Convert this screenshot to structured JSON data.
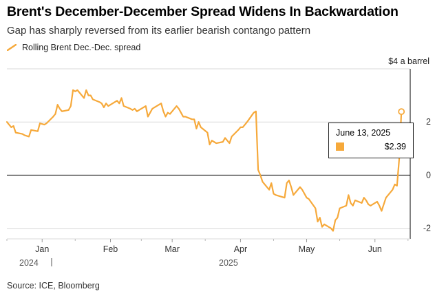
{
  "title": "Brent's December-December Spread Widens In Backwardation",
  "subtitle": "Gap has sharply reversed from its earlier bearish contango pattern",
  "source": "Source: ICE, Bloomberg",
  "colors": {
    "line": "#f6a93b",
    "axis": "#000000",
    "grid": "#d9d9d9"
  },
  "tooltip": {
    "date": "June 13, 2025",
    "value": "$2.39"
  },
  "chart_data": {
    "type": "line",
    "title": "Brent's December-December Spread Widens In Backwardation",
    "subtitle": "Gap has sharply reversed from its earlier bearish contango pattern",
    "unit_label": "$4 a barrel",
    "xlabel": "",
    "ylabel": "",
    "ylim": [
      -2.4,
      4
    ],
    "yticks": [
      2,
      0,
      -2
    ],
    "ytick_labels": [
      "2",
      "0",
      "-2"
    ],
    "xlim": [
      "2024-12-16",
      "2025-06-17"
    ],
    "xticks": [
      {
        "date": "2025-01-01",
        "label": "Jan"
      },
      {
        "date": "2025-02-01",
        "label": "Feb"
      },
      {
        "date": "2025-03-01",
        "label": "Mar"
      },
      {
        "date": "2025-04-01",
        "label": "Apr"
      },
      {
        "date": "2025-05-01",
        "label": "May"
      },
      {
        "date": "2025-06-01",
        "label": "Jun"
      }
    ],
    "year_labels": [
      {
        "date": "2024-12-16",
        "label": "2024"
      },
      {
        "date": "2025-01-01",
        "label": "2025"
      }
    ],
    "grid": true,
    "legend": "top-left",
    "series": [
      {
        "name": "Rolling Brent Dec.-Dec. spread",
        "points": [
          [
            "2024-12-16",
            2.0
          ],
          [
            "2024-12-17",
            1.9
          ],
          [
            "2024-12-18",
            1.8
          ],
          [
            "2024-12-19",
            1.85
          ],
          [
            "2024-12-20",
            1.6
          ],
          [
            "2024-12-23",
            1.55
          ],
          [
            "2024-12-24",
            1.5
          ],
          [
            "2024-12-26",
            1.45
          ],
          [
            "2024-12-27",
            1.7
          ],
          [
            "2024-12-30",
            1.65
          ],
          [
            "2024-12-31",
            1.95
          ],
          [
            "2025-01-02",
            1.9
          ],
          [
            "2025-01-03",
            1.95
          ],
          [
            "2025-01-06",
            2.2
          ],
          [
            "2025-01-07",
            2.3
          ],
          [
            "2025-01-08",
            2.65
          ],
          [
            "2025-01-09",
            2.5
          ],
          [
            "2025-01-10",
            2.4
          ],
          [
            "2025-01-13",
            2.45
          ],
          [
            "2025-01-14",
            2.6
          ],
          [
            "2025-01-15",
            3.2
          ],
          [
            "2025-01-16",
            3.15
          ],
          [
            "2025-01-17",
            3.2
          ],
          [
            "2025-01-20",
            2.9
          ],
          [
            "2025-01-21",
            3.2
          ],
          [
            "2025-01-22",
            3.0
          ],
          [
            "2025-01-23",
            3.0
          ],
          [
            "2025-01-24",
            2.85
          ],
          [
            "2025-01-27",
            2.75
          ],
          [
            "2025-01-28",
            2.7
          ],
          [
            "2025-01-29",
            2.55
          ],
          [
            "2025-01-30",
            2.7
          ],
          [
            "2025-01-31",
            2.6
          ],
          [
            "2025-02-03",
            2.75
          ],
          [
            "2025-02-04",
            2.8
          ],
          [
            "2025-02-05",
            2.7
          ],
          [
            "2025-02-06",
            2.9
          ],
          [
            "2025-02-07",
            2.6
          ],
          [
            "2025-02-10",
            2.5
          ],
          [
            "2025-02-11",
            2.45
          ],
          [
            "2025-02-12",
            2.5
          ],
          [
            "2025-02-13",
            2.4
          ],
          [
            "2025-02-14",
            2.45
          ],
          [
            "2025-02-17",
            2.6
          ],
          [
            "2025-02-18",
            2.2
          ],
          [
            "2025-02-19",
            2.35
          ],
          [
            "2025-02-20",
            2.5
          ],
          [
            "2025-02-21",
            2.55
          ],
          [
            "2025-02-24",
            2.7
          ],
          [
            "2025-02-25",
            2.4
          ],
          [
            "2025-02-26",
            2.2
          ],
          [
            "2025-02-27",
            2.35
          ],
          [
            "2025-02-28",
            2.3
          ],
          [
            "2025-03-03",
            2.6
          ],
          [
            "2025-03-04",
            2.5
          ],
          [
            "2025-03-05",
            2.35
          ],
          [
            "2025-03-06",
            2.2
          ],
          [
            "2025-03-07",
            2.2
          ],
          [
            "2025-03-10",
            2.1
          ],
          [
            "2025-03-11",
            2.1
          ],
          [
            "2025-03-12",
            1.75
          ],
          [
            "2025-03-13",
            2.0
          ],
          [
            "2025-03-14",
            1.8
          ],
          [
            "2025-03-17",
            1.6
          ],
          [
            "2025-03-18",
            1.15
          ],
          [
            "2025-03-19",
            1.3
          ],
          [
            "2025-03-20",
            1.25
          ],
          [
            "2025-03-21",
            1.2
          ],
          [
            "2025-03-24",
            1.25
          ],
          [
            "2025-03-25",
            1.4
          ],
          [
            "2025-03-26",
            1.3
          ],
          [
            "2025-03-27",
            1.2
          ],
          [
            "2025-03-28",
            1.45
          ],
          [
            "2025-03-31",
            1.7
          ],
          [
            "2025-04-01",
            1.8
          ],
          [
            "2025-04-02",
            1.8
          ],
          [
            "2025-04-03",
            1.9
          ],
          [
            "2025-04-04",
            2.0
          ],
          [
            "2025-04-07",
            2.35
          ],
          [
            "2025-04-08",
            2.4
          ],
          [
            "2025-04-09",
            0.2
          ],
          [
            "2025-04-10",
            0.0
          ],
          [
            "2025-04-11",
            -0.25
          ],
          [
            "2025-04-14",
            -0.55
          ],
          [
            "2025-04-15",
            -0.3
          ],
          [
            "2025-04-16",
            -0.7
          ],
          [
            "2025-04-17",
            -0.75
          ],
          [
            "2025-04-21",
            -0.85
          ],
          [
            "2025-04-22",
            -0.3
          ],
          [
            "2025-04-23",
            -0.2
          ],
          [
            "2025-04-24",
            -0.45
          ],
          [
            "2025-04-25",
            -0.75
          ],
          [
            "2025-04-28",
            -0.45
          ],
          [
            "2025-04-29",
            -0.55
          ],
          [
            "2025-04-30",
            -0.7
          ],
          [
            "2025-05-01",
            -0.85
          ],
          [
            "2025-05-02",
            -0.9
          ],
          [
            "2025-05-05",
            -1.25
          ],
          [
            "2025-05-06",
            -1.75
          ],
          [
            "2025-05-07",
            -1.6
          ],
          [
            "2025-05-08",
            -1.95
          ],
          [
            "2025-05-09",
            -1.85
          ],
          [
            "2025-05-12",
            -2.0
          ],
          [
            "2025-05-13",
            -2.1
          ],
          [
            "2025-05-14",
            -1.7
          ],
          [
            "2025-05-15",
            -1.6
          ],
          [
            "2025-05-16",
            -1.25
          ],
          [
            "2025-05-19",
            -1.15
          ],
          [
            "2025-05-20",
            -0.75
          ],
          [
            "2025-05-21",
            -1.05
          ],
          [
            "2025-05-22",
            -1.15
          ],
          [
            "2025-05-23",
            -0.95
          ],
          [
            "2025-05-26",
            -1.05
          ],
          [
            "2025-05-27",
            -0.85
          ],
          [
            "2025-05-28",
            -0.95
          ],
          [
            "2025-05-29",
            -1.1
          ],
          [
            "2025-05-30",
            -1.15
          ],
          [
            "2025-06-02",
            -1.0
          ],
          [
            "2025-06-03",
            -1.15
          ],
          [
            "2025-06-04",
            -1.35
          ],
          [
            "2025-06-05",
            -1.1
          ],
          [
            "2025-06-06",
            -0.85
          ],
          [
            "2025-06-09",
            -0.55
          ],
          [
            "2025-06-10",
            -0.35
          ],
          [
            "2025-06-11",
            -0.4
          ],
          [
            "2025-06-12",
            0.6
          ],
          [
            "2025-06-13",
            2.39
          ]
        ]
      }
    ],
    "annotations": [
      {
        "date": "2025-06-13",
        "label": "June 13, 2025",
        "value": "$2.39"
      }
    ]
  }
}
